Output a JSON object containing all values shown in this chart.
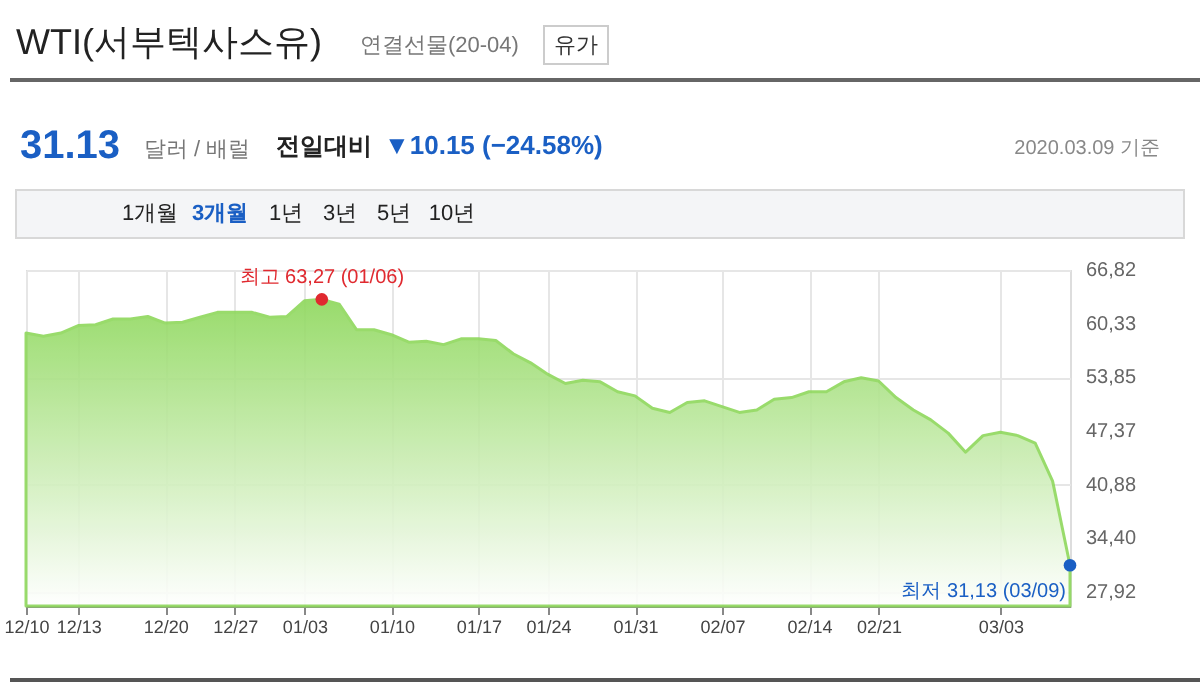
{
  "chart_data": {
    "type": "area",
    "title": "WTI(서부텍사스유)",
    "subtitle": "연결선물(20-04)",
    "categories": [
      "12/10",
      null,
      null,
      "12/13",
      null,
      null,
      null,
      null,
      "12/20",
      null,
      null,
      null,
      "12/27",
      null,
      null,
      null,
      "01/03",
      null,
      null,
      null,
      null,
      "01/10",
      null,
      null,
      null,
      null,
      "01/17",
      null,
      null,
      null,
      "01/24",
      null,
      null,
      null,
      null,
      "01/31",
      null,
      null,
      null,
      null,
      "02/07",
      null,
      null,
      null,
      null,
      "02/14",
      null,
      null,
      null,
      "02/21",
      null,
      null,
      null,
      null,
      null,
      null,
      "03/03",
      null,
      null,
      null,
      null
    ],
    "series": [
      {
        "color": "#8ed85c",
        "values": [
          59.2,
          58.8,
          59.2,
          60.1,
          60.2,
          60.9,
          60.9,
          61.2,
          60.4,
          60.5,
          61.1,
          61.7,
          61.7,
          61.7,
          61.1,
          61.2,
          63.1,
          63.27,
          62.7,
          59.6,
          59.6,
          59.0,
          58.1,
          58.2,
          57.8,
          58.5,
          58.5,
          58.3,
          56.7,
          55.6,
          54.2,
          53.1,
          53.5,
          53.3,
          52.1,
          51.6,
          50.1,
          49.6,
          50.8,
          51.0,
          50.3,
          49.6,
          49.9,
          51.2,
          51.4,
          52.1,
          52.1,
          53.3,
          53.8,
          53.4,
          51.4,
          49.9,
          48.7,
          47.1,
          44.8,
          46.8,
          47.2,
          46.8,
          45.9,
          41.3,
          31.13
        ]
      }
    ],
    "ylim": [
      26.2,
      66.82
    ],
    "yticks": [
      {
        "value": 27.92,
        "label": "27,92"
      },
      {
        "value": 34.4,
        "label": "34,40"
      },
      {
        "value": 40.88,
        "label": "40,88"
      },
      {
        "value": 47.37,
        "label": "47,37"
      },
      {
        "value": 53.85,
        "label": "53,85"
      },
      {
        "value": 60.33,
        "label": "60,33"
      },
      {
        "value": 66.82,
        "label": "66,82"
      }
    ],
    "grid": true,
    "marker": "none",
    "line_style": "solid",
    "annotations": [
      "유가",
      "31.13",
      "달러 / 배럴",
      "전일대비",
      "▼10.15 (−24.58%)",
      "2020.03.09 기준",
      "1개월",
      "3개월",
      "1년",
      "3년",
      "5년",
      "10년",
      {
        "text": "최고 63,27 (01/06)",
        "y": 63.27
      },
      "최저 31,13 (03/09)"
    ]
  }
}
